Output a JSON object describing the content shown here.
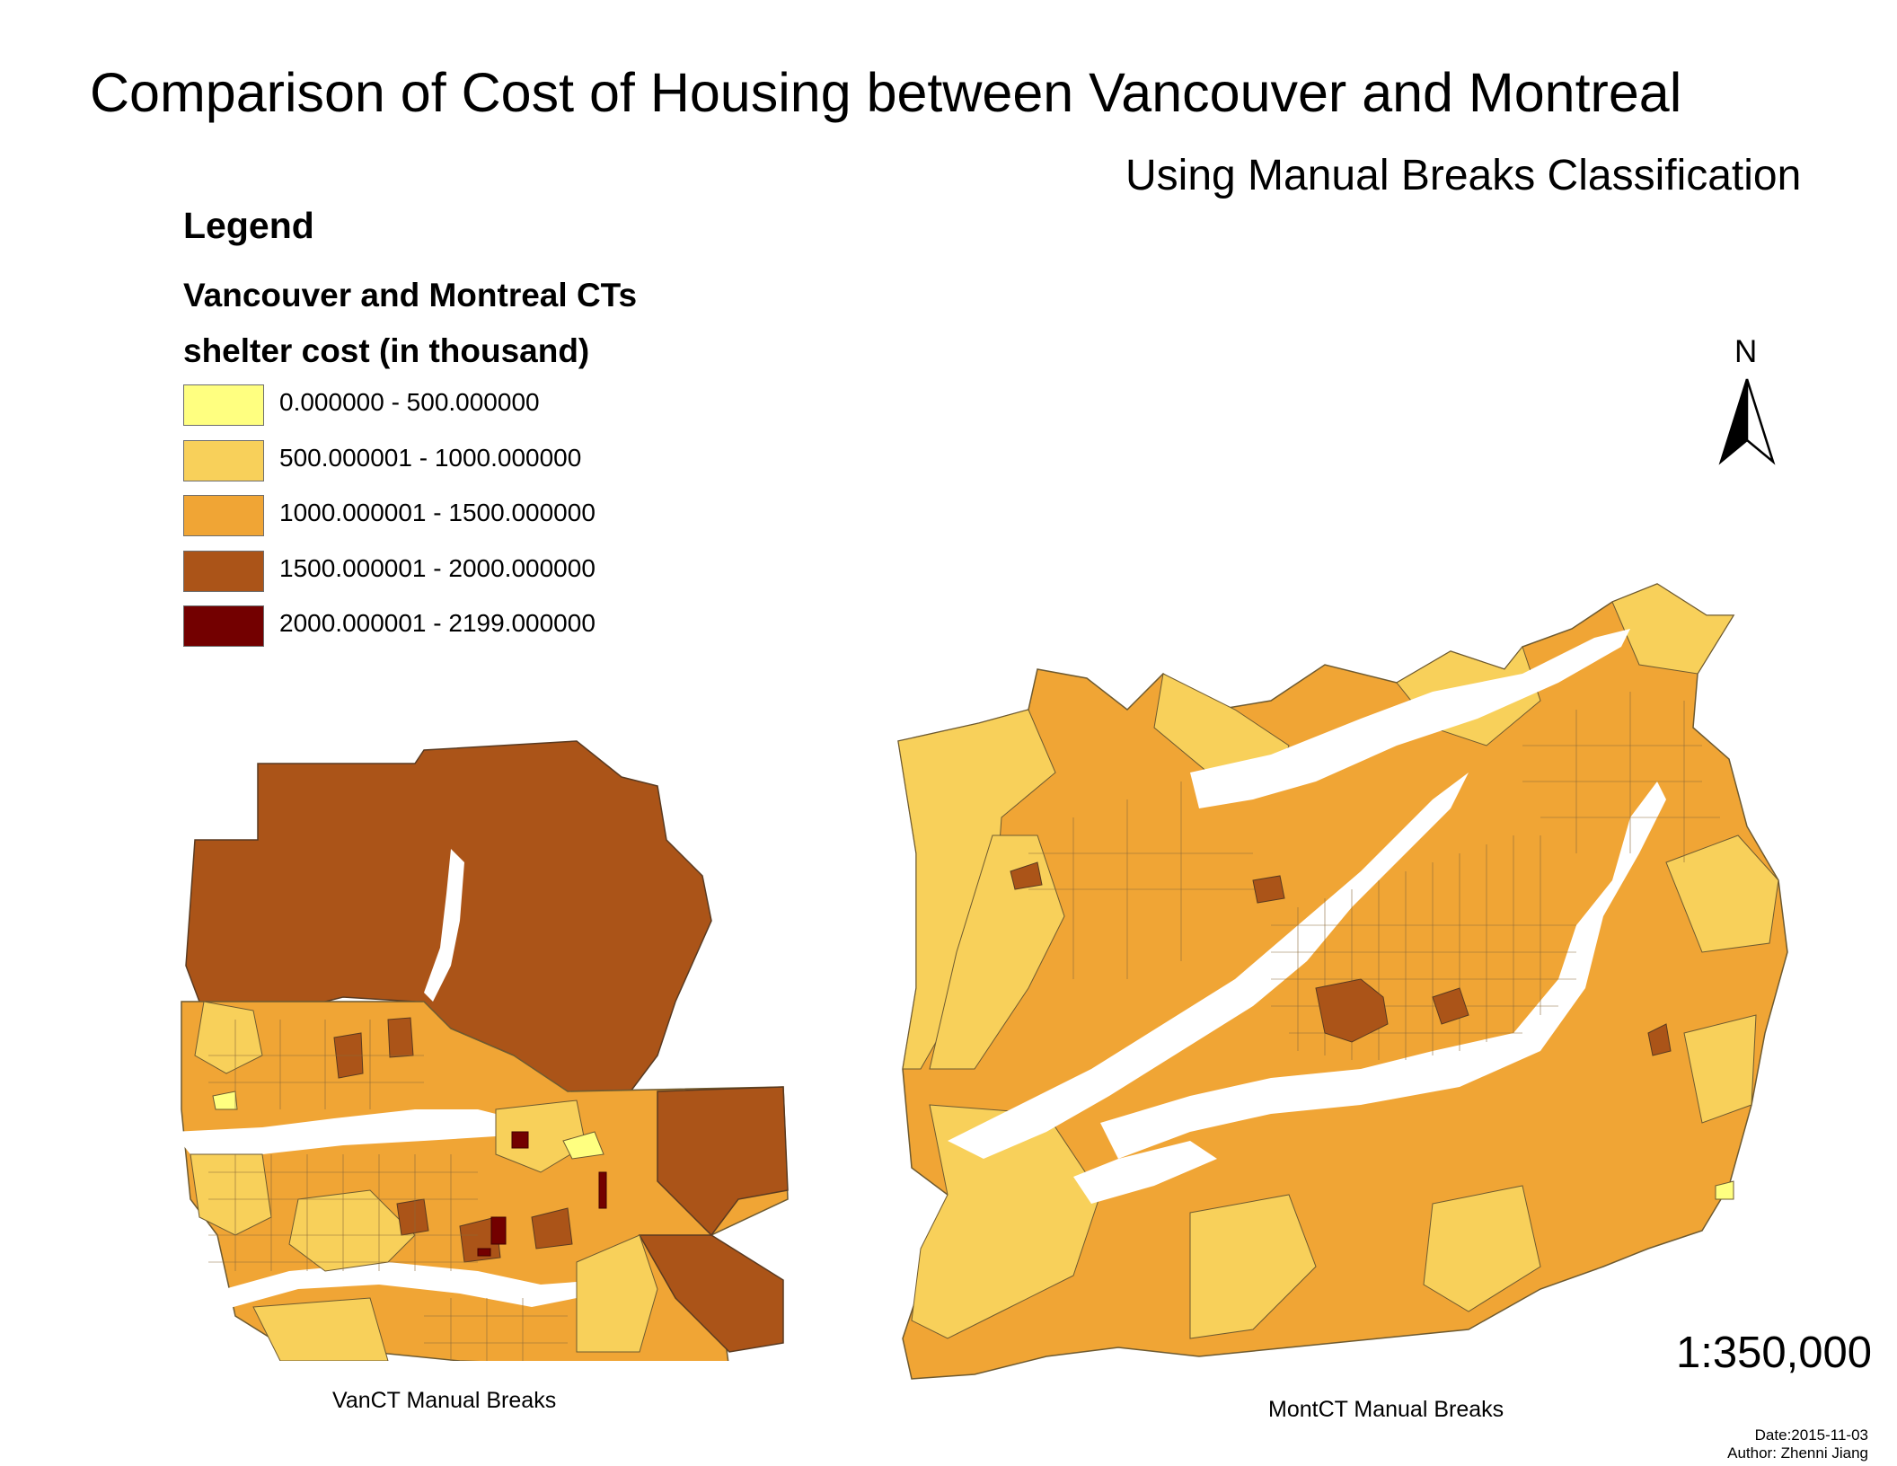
{
  "title": "Comparison of Cost of Housing between Vancouver and Montreal",
  "subtitle": "Using Manual Breaks Classification",
  "legend": {
    "heading": "Legend",
    "layer_name": "Vancouver and Montreal CTs",
    "field_name": "shelter cost (in thousand)",
    "classes": [
      {
        "label": "0.000000 - 500.000000",
        "color": "#ffff80"
      },
      {
        "label": "500.000001 - 1000.000000",
        "color": "#f8d05a"
      },
      {
        "label": "1000.000001 - 1500.000000",
        "color": "#f0a535"
      },
      {
        "label": "1500.000001 - 2000.000000",
        "color": "#ab5418"
      },
      {
        "label": "2000.000001 - 2199.000000",
        "color": "#730000"
      }
    ]
  },
  "maps": {
    "vancouver_caption": "VanCT Manual Breaks",
    "montreal_caption": "MontCT Manual Breaks"
  },
  "north_arrow": {
    "letter": "N",
    "icon": "north-arrow-icon"
  },
  "scale": "1:350,000",
  "date": "Date:2015-11-03",
  "author": "Author: Zhenni Jiang"
}
